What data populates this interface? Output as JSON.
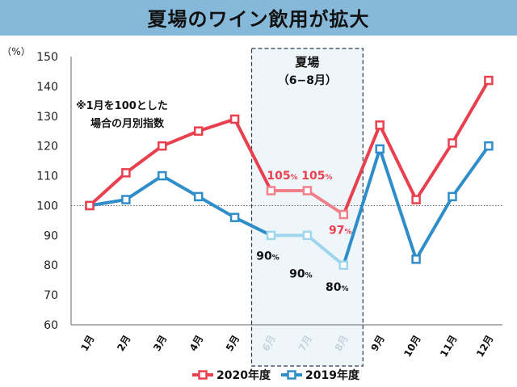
{
  "chart_data": {
    "type": "line",
    "title": "夏場のワイン飲用が拡大",
    "ylabel": "（%）",
    "ylim": [
      60,
      150
    ],
    "yticks": [
      60,
      70,
      80,
      90,
      100,
      110,
      120,
      130,
      140,
      150
    ],
    "categories": [
      "1月",
      "2月",
      "3月",
      "4月",
      "5月",
      "6月",
      "7月",
      "8月",
      "9月",
      "10月",
      "11月",
      "12月"
    ],
    "series": [
      {
        "name": "2020年度",
        "color": "#e8404e",
        "values": [
          100,
          111,
          120,
          125,
          129,
          105,
          105,
          97,
          127,
          102,
          121,
          142
        ]
      },
      {
        "name": "2019年度",
        "color": "#2f8ec9",
        "values": [
          100,
          102,
          110,
          103,
          96,
          90,
          90,
          80,
          119,
          82,
          103,
          120
        ]
      }
    ],
    "highlight": {
      "label": "夏場",
      "range": "（6−8月）",
      "from": "6月",
      "to": "8月",
      "highlight_colors": {
        "2020年度": "#f0808a",
        "2019年度": "#9fd6ee"
      }
    },
    "note": [
      "※1月を100とした",
      "場合の月別指数"
    ],
    "reference_line": 100,
    "data_labels": [
      {
        "series": "2020年度",
        "category": "6月",
        "value": "105",
        "unit": "%"
      },
      {
        "series": "2020年度",
        "category": "7月",
        "value": "105",
        "unit": "%"
      },
      {
        "series": "2020年度",
        "category": "8月",
        "value": "97",
        "unit": "%"
      },
      {
        "series": "2019年度",
        "category": "6月",
        "value": "90",
        "unit": "%"
      },
      {
        "series": "2019年度",
        "category": "7月",
        "value": "90",
        "unit": "%"
      },
      {
        "series": "2019年度",
        "category": "8月",
        "value": "80",
        "unit": "%"
      }
    ],
    "grid": false,
    "legend": "bottom"
  }
}
